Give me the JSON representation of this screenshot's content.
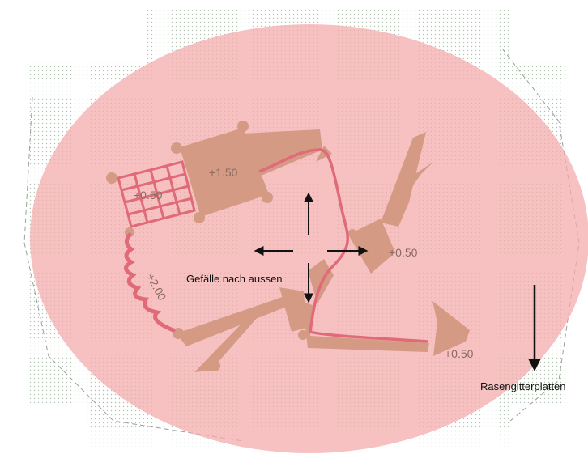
{
  "labels": {
    "slope_note": "Gefälle nach aussen",
    "grass_pavers": "Rasengitterplatten",
    "elev_top": "+1.50",
    "elev_grid": "+0.50",
    "elev_ramp": "+2.00",
    "elev_mid_right": "+0.50",
    "elev_bottom_right": "+0.50"
  },
  "colors": {
    "pink_area": "#f4a9ab",
    "wood": "#d49a84",
    "rope": "#e06a78",
    "paver_dots": "#b8c8b8",
    "arrow": "#111111"
  }
}
